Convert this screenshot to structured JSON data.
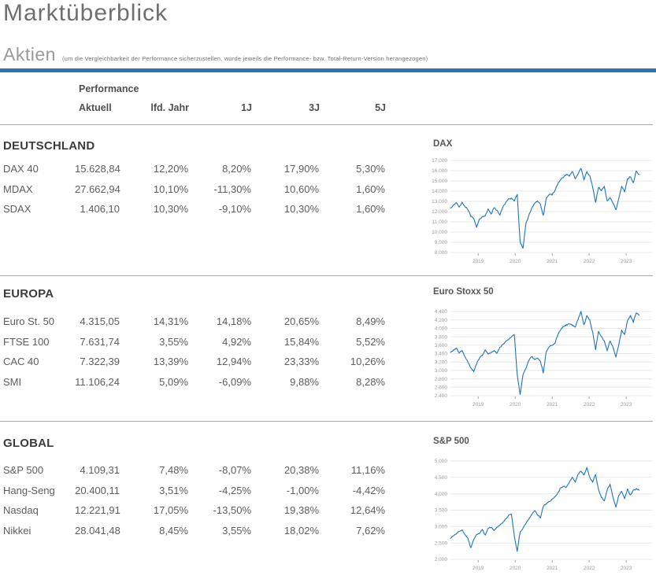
{
  "page": {
    "title": "Marktüberblick"
  },
  "section_aktien": {
    "title": "Aktien",
    "note": "(um die Vergleichbarkeit der Performance sicherzustellen, wurde jeweils die Performance- bzw. Total-Return-Version herangezogen)"
  },
  "colors": {
    "accent_bar": "#2b72b4",
    "grid": "#e7e7e7",
    "axis_text": "#9b9b9b",
    "line": "#1e73c0"
  },
  "table": {
    "group_header": "Performance",
    "columns": [
      "Aktuell",
      "lfd. Jahr",
      "1J",
      "3J",
      "5J"
    ],
    "sections": [
      {
        "title": "DEUTSCHLAND",
        "rows": [
          {
            "name": "DAX 40",
            "values": [
              "15.628,84",
              "12,20%",
              "8,20%",
              "17,90%",
              "5,30%"
            ]
          },
          {
            "name": "MDAX",
            "values": [
              "27.662,94",
              "10,10%",
              "-11,30%",
              "10,60%",
              "1,60%"
            ]
          },
          {
            "name": "SDAX",
            "values": [
              "1.406,10",
              "10,30%",
              "-9,10%",
              "10,30%",
              "1,60%"
            ]
          }
        ]
      },
      {
        "title": "EUROPA",
        "rows": [
          {
            "name": "Euro St. 50",
            "values": [
              "4.315,05",
              "14,31%",
              "14,18%",
              "20,65%",
              "8,49%"
            ]
          },
          {
            "name": "FTSE 100",
            "values": [
              "7.631,74",
              "3,55%",
              "4,92%",
              "15,84%",
              "5,52%"
            ]
          },
          {
            "name": "CAC 40",
            "values": [
              "7.322,39",
              "13,39%",
              "12,94%",
              "23,33%",
              "10,26%"
            ]
          },
          {
            "name": "SMI",
            "values": [
              "11.106,24",
              "5,09%",
              "-6,09%",
              "9,88%",
              "8,28%"
            ]
          }
        ]
      },
      {
        "title": "GLOBAL",
        "rows": [
          {
            "name": "S&P 500",
            "values": [
              "4.109,31",
              "7,48%",
              "-8,07%",
              "20,38%",
              "11,16%"
            ]
          },
          {
            "name": "Hang-Seng",
            "values": [
              "20.400,11",
              "3,51%",
              "-4,25%",
              "-1,00%",
              "-4,42%"
            ]
          },
          {
            "name": "Nasdaq",
            "values": [
              "12.221,91",
              "17,05%",
              "-13,50%",
              "19,38%",
              "12,64%"
            ]
          },
          {
            "name": "Nikkei",
            "values": [
              "28.041,48",
              "8,45%",
              "3,55%",
              "18,02%",
              "7,62%"
            ]
          }
        ]
      }
    ]
  },
  "chart_data": [
    {
      "type": "line",
      "title": "DAX",
      "line_color": "#1e73c0",
      "ylim": [
        8000,
        17000
      ],
      "y_ticks": [
        17000,
        16000,
        15000,
        14000,
        13000,
        12000,
        11000,
        10000,
        9000,
        8000
      ],
      "y_tick_labels": [
        "17.000",
        "16.000",
        "15.000",
        "14.000",
        "13.000",
        "12.000",
        "11.000",
        "10.000",
        "9.000",
        "8.000"
      ],
      "x_tick_labels": [
        "2019",
        "2020",
        "2021",
        "2022",
        "2023"
      ],
      "t_axis": [
        2018.25,
        2023.7
      ],
      "t_data": [
        2018.25,
        2023.35
      ],
      "jitter": 110,
      "values": [
        12350,
        12600,
        12850,
        12450,
        12900,
        12500,
        12250,
        11550,
        11350,
        10450,
        11250,
        11500,
        11600,
        12300,
        11750,
        12400,
        12150,
        11650,
        12450,
        12850,
        13250,
        13300,
        13050,
        13700,
        9000,
        8450,
        10800,
        11600,
        12350,
        12800,
        13050,
        12700,
        11600,
        13300,
        13700,
        13650,
        14050,
        14750,
        15150,
        15400,
        15650,
        15500,
        15950,
        15250,
        15700,
        16250,
        15150,
        15900,
        15500,
        14400,
        12850,
        14400,
        14050,
        14450,
        13000,
        13350,
        12850,
        12150,
        13300,
        14450,
        13950,
        15150,
        15450,
        14800,
        15950,
        15630
      ]
    },
    {
      "type": "line",
      "title": "Euro Stoxx 50",
      "line_color": "#1e73c0",
      "ylim": [
        2400,
        4400
      ],
      "y_ticks": [
        4400,
        4200,
        4000,
        3800,
        3600,
        3400,
        3200,
        3000,
        2800,
        2600,
        2400
      ],
      "y_tick_labels": [
        "4.400",
        "4.200",
        "4.000",
        "3.800",
        "3.600",
        "3.400",
        "3.200",
        "3.000",
        "2.800",
        "2.600",
        "2.400"
      ],
      "x_tick_labels": [
        "2019",
        "2020",
        "2021",
        "2022",
        "2023"
      ],
      "t_axis": [
        2018.25,
        2023.7
      ],
      "t_data": [
        2018.25,
        2023.35
      ],
      "jitter": 26,
      "values": [
        3430,
        3480,
        3530,
        3420,
        3480,
        3320,
        3210,
        3060,
        2980,
        3160,
        3300,
        3360,
        3500,
        3380,
        3420,
        3480,
        3400,
        3550,
        3620,
        3690,
        3740,
        3790,
        3860,
        2900,
        2420,
        2900,
        3050,
        3230,
        3340,
        3250,
        3300,
        3210,
        2950,
        3450,
        3560,
        3600,
        3650,
        3850,
        3980,
        4050,
        4080,
        4120,
        4070,
        4040,
        4220,
        4400,
        4080,
        4300,
        4200,
        3900,
        3500,
        3920,
        3800,
        3700,
        3480,
        3700,
        3550,
        3310,
        3620,
        3950,
        3850,
        4180,
        4300,
        4150,
        4380,
        4315
      ]
    },
    {
      "type": "line",
      "title": "S&P 500",
      "line_color": "#1e73c0",
      "ylim": [
        2000,
        5000
      ],
      "y_ticks": [
        5000,
        4500,
        4000,
        3500,
        3000,
        2500,
        2000
      ],
      "y_tick_labels": [
        "5.000",
        "4.500",
        "4.000",
        "3.500",
        "3.000",
        "2.500",
        "2.000"
      ],
      "x_tick_labels": [
        "2019",
        "2020",
        "2021",
        "2022",
        "2023"
      ],
      "t_axis": [
        2018.25,
        2023.7
      ],
      "t_data": [
        2018.25,
        2023.35
      ],
      "jitter": 33,
      "values": [
        2640,
        2720,
        2780,
        2850,
        2900,
        2760,
        2650,
        2350,
        2600,
        2750,
        2800,
        2900,
        2750,
        2950,
        2980,
        2890,
        2980,
        3050,
        3120,
        3230,
        3330,
        3380,
        2700,
        2250,
        2830,
        2950,
        3100,
        3230,
        3350,
        3500,
        3360,
        3270,
        3620,
        3700,
        3760,
        3830,
        3900,
        4020,
        4180,
        4230,
        4200,
        4360,
        4520,
        4350,
        4600,
        4690,
        4570,
        4790,
        4500,
        4350,
        4600,
        4130,
        3900,
        3790,
        4120,
        4300,
        3900,
        3590,
        3950,
        4080,
        3850,
        4150,
        3950,
        4100,
        4160,
        4109
      ]
    }
  ]
}
